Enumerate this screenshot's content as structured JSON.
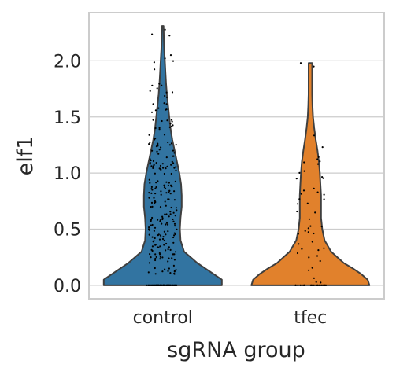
{
  "chart_data": {
    "type": "violin",
    "xlabel": "sgRNA group",
    "ylabel": "elf1",
    "categories": [
      "control",
      "tfec"
    ],
    "ylim": [
      -0.12,
      2.43
    ],
    "yticks": [
      0.0,
      0.5,
      1.0,
      1.5,
      2.0
    ],
    "ytick_labels": [
      "0.0",
      "0.5",
      "1.0",
      "1.5",
      "2.0"
    ],
    "grid": true,
    "series": [
      {
        "category": "control",
        "color": "#3274a1",
        "max": 2.31,
        "density_profile": [
          [
            0.0,
            1.0
          ],
          [
            0.05,
            1.0
          ],
          [
            0.1,
            0.86
          ],
          [
            0.2,
            0.58
          ],
          [
            0.3,
            0.36
          ],
          [
            0.4,
            0.3
          ],
          [
            0.5,
            0.29
          ],
          [
            0.6,
            0.3
          ],
          [
            0.7,
            0.32
          ],
          [
            0.8,
            0.32
          ],
          [
            0.9,
            0.31
          ],
          [
            1.0,
            0.28
          ],
          [
            1.1,
            0.24
          ],
          [
            1.2,
            0.2
          ],
          [
            1.3,
            0.16
          ],
          [
            1.4,
            0.13
          ],
          [
            1.5,
            0.11
          ],
          [
            1.6,
            0.09
          ],
          [
            1.7,
            0.07
          ],
          [
            1.8,
            0.055
          ],
          [
            1.9,
            0.045
          ],
          [
            2.0,
            0.035
          ],
          [
            2.1,
            0.025
          ],
          [
            2.2,
            0.018
          ],
          [
            2.31,
            0.013
          ]
        ],
        "points": [
          [
            0.0,
            70
          ],
          [
            0.32,
            12
          ],
          [
            0.2,
            30
          ],
          [
            0.4,
            30
          ],
          [
            0.6,
            35
          ],
          [
            0.8,
            35
          ],
          [
            1.0,
            30
          ],
          [
            1.2,
            25
          ],
          [
            1.4,
            15
          ],
          [
            1.6,
            10
          ],
          [
            1.8,
            7
          ],
          [
            2.0,
            5
          ],
          [
            2.2,
            3
          ]
        ]
      },
      {
        "category": "tfec",
        "color": "#e1812c",
        "max": 1.98,
        "density_profile": [
          [
            0.0,
            1.0
          ],
          [
            0.05,
            0.97
          ],
          [
            0.1,
            0.86
          ],
          [
            0.15,
            0.72
          ],
          [
            0.2,
            0.56
          ],
          [
            0.3,
            0.35
          ],
          [
            0.4,
            0.24
          ],
          [
            0.5,
            0.2
          ],
          [
            0.6,
            0.18
          ],
          [
            0.7,
            0.18
          ],
          [
            0.8,
            0.18
          ],
          [
            0.9,
            0.17
          ],
          [
            1.0,
            0.16
          ],
          [
            1.1,
            0.145
          ],
          [
            1.2,
            0.12
          ],
          [
            1.3,
            0.09
          ],
          [
            1.4,
            0.065
          ],
          [
            1.5,
            0.045
          ],
          [
            1.6,
            0.035
          ],
          [
            1.7,
            0.03
          ],
          [
            1.8,
            0.03
          ],
          [
            1.9,
            0.03
          ],
          [
            1.98,
            0.03
          ]
        ],
        "points": [
          [
            0.0,
            25
          ],
          [
            0.12,
            6
          ],
          [
            0.3,
            8
          ],
          [
            0.5,
            8
          ],
          [
            0.7,
            6
          ],
          [
            0.9,
            8
          ],
          [
            1.1,
            7
          ],
          [
            1.3,
            2
          ],
          [
            1.85,
            1
          ],
          [
            1.98,
            1
          ]
        ]
      }
    ]
  }
}
